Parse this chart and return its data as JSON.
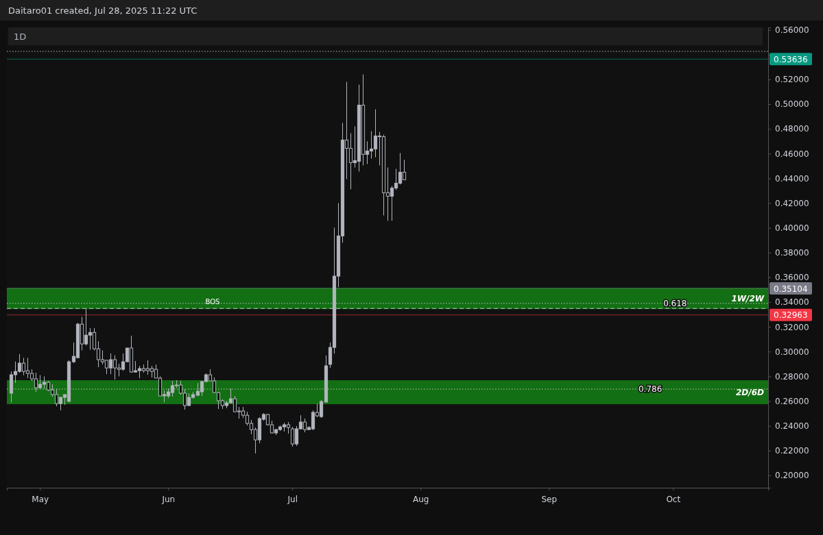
{
  "chart_data": {
    "type": "candlestick",
    "title": "1D",
    "annotations": [
      "Daitaro01 created, Jul 28, 2025 11:22 UTC",
      {
        "text": "0.618",
        "x": "2025-09-28",
        "y": 0.339
      },
      {
        "text": "0.786",
        "x": "2025-09-22",
        "y": 0.2697
      }
    ],
    "color": "#b2b5be",
    "x": [
      "2025-04-24",
      "2025-04-25",
      "2025-04-26",
      "2025-04-27",
      "2025-04-28",
      "2025-04-29",
      "2025-04-30",
      "2025-05-01",
      "2025-05-02",
      "2025-05-03",
      "2025-05-04",
      "2025-05-05",
      "2025-05-06",
      "2025-05-07",
      "2025-05-08",
      "2025-05-09",
      "2025-05-10",
      "2025-05-11",
      "2025-05-12",
      "2025-05-13",
      "2025-05-14",
      "2025-05-15",
      "2025-05-16",
      "2025-05-17",
      "2025-05-18",
      "2025-05-19",
      "2025-05-20",
      "2025-05-21",
      "2025-05-22",
      "2025-05-23",
      "2025-05-24",
      "2025-05-25",
      "2025-05-26",
      "2025-05-27",
      "2025-05-28",
      "2025-05-29",
      "2025-05-30",
      "2025-05-31",
      "2025-06-01",
      "2025-06-02",
      "2025-06-03",
      "2025-06-04",
      "2025-06-05",
      "2025-06-06",
      "2025-06-07",
      "2025-06-08",
      "2025-06-09",
      "2025-06-10",
      "2025-06-11",
      "2025-06-12",
      "2025-06-13",
      "2025-06-14",
      "2025-06-15",
      "2025-06-16",
      "2025-06-17",
      "2025-06-18",
      "2025-06-19",
      "2025-06-20",
      "2025-06-21",
      "2025-06-22",
      "2025-06-23",
      "2025-06-24",
      "2025-06-25",
      "2025-06-26",
      "2025-06-27",
      "2025-06-28",
      "2025-06-29",
      "2025-06-30",
      "2025-07-01",
      "2025-07-02",
      "2025-07-03",
      "2025-07-04",
      "2025-07-05",
      "2025-07-06",
      "2025-07-07",
      "2025-07-08",
      "2025-07-09",
      "2025-07-10",
      "2025-07-11",
      "2025-07-12",
      "2025-07-13",
      "2025-07-14",
      "2025-07-15",
      "2025-07-16",
      "2025-07-17",
      "2025-07-18",
      "2025-07-19",
      "2025-07-20",
      "2025-07-21",
      "2025-07-22",
      "2025-07-23",
      "2025-07-24",
      "2025-07-25",
      "2025-07-26",
      "2025-07-27",
      "2025-07-28"
    ],
    "ohlc": [
      [
        0.2664,
        0.284,
        0.259,
        0.2813
      ],
      [
        0.2813,
        0.292,
        0.2747,
        0.284
      ],
      [
        0.284,
        0.298,
        0.283,
        0.2907
      ],
      [
        0.2907,
        0.295,
        0.281,
        0.284
      ],
      [
        0.2846,
        0.295,
        0.2786,
        0.2824
      ],
      [
        0.2824,
        0.2857,
        0.2763,
        0.278
      ],
      [
        0.278,
        0.283,
        0.2675,
        0.2708
      ],
      [
        0.2708,
        0.281,
        0.27,
        0.2736
      ],
      [
        0.2736,
        0.28,
        0.27,
        0.2752
      ],
      [
        0.2752,
        0.2763,
        0.268,
        0.269
      ],
      [
        0.269,
        0.2736,
        0.2636,
        0.2653
      ],
      [
        0.2653,
        0.27,
        0.2558,
        0.258
      ],
      [
        0.258,
        0.2636,
        0.2525,
        0.263
      ],
      [
        0.263,
        0.2653,
        0.257,
        0.2653
      ],
      [
        0.2598,
        0.293,
        0.259,
        0.2918
      ],
      [
        0.2918,
        0.3073,
        0.2908,
        0.2962
      ],
      [
        0.2951,
        0.3233,
        0.2946,
        0.3222
      ],
      [
        0.3222,
        0.328,
        0.301,
        0.3062
      ],
      [
        0.3062,
        0.335,
        0.305,
        0.3133
      ],
      [
        0.3133,
        0.319,
        0.3015,
        0.3155
      ],
      [
        0.3155,
        0.319,
        0.301,
        0.3023
      ],
      [
        0.3023,
        0.3084,
        0.2874,
        0.2935
      ],
      [
        0.2935,
        0.301,
        0.2896,
        0.2918
      ],
      [
        0.293,
        0.293,
        0.2818,
        0.2868
      ],
      [
        0.2868,
        0.2985,
        0.2818,
        0.2935
      ],
      [
        0.2935,
        0.297,
        0.2775,
        0.2868
      ],
      [
        0.2868,
        0.2902,
        0.28,
        0.2857
      ],
      [
        0.2857,
        0.2985,
        0.2846,
        0.2918
      ],
      [
        0.2918,
        0.303,
        0.2918,
        0.3029
      ],
      [
        0.3029,
        0.3128,
        0.283,
        0.2835
      ],
      [
        0.2835,
        0.2924,
        0.283,
        0.2846
      ],
      [
        0.2846,
        0.2885,
        0.2786,
        0.2863
      ],
      [
        0.2863,
        0.2896,
        0.283,
        0.2846
      ],
      [
        0.2863,
        0.2929,
        0.2813,
        0.2846
      ],
      [
        0.2863,
        0.2885,
        0.2791,
        0.284
      ],
      [
        0.2857,
        0.2896,
        0.2786,
        0.2786
      ],
      [
        0.2786,
        0.28,
        0.2642,
        0.2642
      ],
      [
        0.2642,
        0.2686,
        0.259,
        0.2653
      ],
      [
        0.2642,
        0.27,
        0.2625,
        0.2675
      ],
      [
        0.2669,
        0.2763,
        0.2636,
        0.2725
      ],
      [
        0.2725,
        0.2769,
        0.2708,
        0.273
      ],
      [
        0.273,
        0.2763,
        0.2653,
        0.2664
      ],
      [
        0.2664,
        0.2697,
        0.2531,
        0.2564
      ],
      [
        0.2564,
        0.2664,
        0.2564,
        0.263
      ],
      [
        0.263,
        0.2675,
        0.262,
        0.2653
      ],
      [
        0.2647,
        0.2747,
        0.2642,
        0.268
      ],
      [
        0.2675,
        0.2763,
        0.2642,
        0.2758
      ],
      [
        0.2758,
        0.2824,
        0.2752,
        0.2813
      ],
      [
        0.2813,
        0.2857,
        0.2758,
        0.2763
      ],
      [
        0.2763,
        0.2791,
        0.2664,
        0.2669
      ],
      [
        0.2669,
        0.2675,
        0.2536,
        0.2603
      ],
      [
        0.2603,
        0.2614,
        0.2536,
        0.2564
      ],
      [
        0.2564,
        0.2603,
        0.2542,
        0.2586
      ],
      [
        0.2586,
        0.2702,
        0.2586,
        0.2619
      ],
      [
        0.2619,
        0.2642,
        0.2514,
        0.2514
      ],
      [
        0.252,
        0.2553,
        0.2459,
        0.2514
      ],
      [
        0.252,
        0.2553,
        0.2464,
        0.2486
      ],
      [
        0.2486,
        0.2514,
        0.2403,
        0.242
      ],
      [
        0.242,
        0.2448,
        0.2332,
        0.237
      ],
      [
        0.237,
        0.2387,
        0.2177,
        0.2287
      ],
      [
        0.2287,
        0.247,
        0.226,
        0.2459
      ],
      [
        0.2453,
        0.2503,
        0.2442,
        0.2492
      ],
      [
        0.2492,
        0.2497,
        0.2403,
        0.2409
      ],
      [
        0.2409,
        0.2442,
        0.2337,
        0.2343
      ],
      [
        0.2343,
        0.2376,
        0.2326,
        0.237
      ],
      [
        0.237,
        0.2403,
        0.2359,
        0.2392
      ],
      [
        0.2392,
        0.2425,
        0.2354,
        0.2409
      ],
      [
        0.2409,
        0.2431,
        0.2337,
        0.2387
      ],
      [
        0.2376,
        0.2392,
        0.2232,
        0.2254
      ],
      [
        0.2254,
        0.2398,
        0.2238,
        0.2376
      ],
      [
        0.2376,
        0.2486,
        0.237,
        0.2431
      ],
      [
        0.2431,
        0.2459,
        0.2348,
        0.237
      ],
      [
        0.237,
        0.2398,
        0.2365,
        0.2387
      ],
      [
        0.2376,
        0.2525,
        0.2365,
        0.2509
      ],
      [
        0.2509,
        0.258,
        0.247,
        0.2481
      ],
      [
        0.2475,
        0.2608,
        0.2464,
        0.2597
      ],
      [
        0.2592,
        0.2968,
        0.2592,
        0.2885
      ],
      [
        0.2897,
        0.3073,
        0.2868,
        0.3034
      ],
      [
        0.3034,
        0.4002,
        0.2984,
        0.361
      ],
      [
        0.361,
        0.4201,
        0.3521,
        0.3935
      ],
      [
        0.3935,
        0.4848,
        0.388,
        0.471
      ],
      [
        0.471,
        0.518,
        0.4394,
        0.4643
      ],
      [
        0.4643,
        0.4765,
        0.4312,
        0.4527
      ],
      [
        0.4527,
        0.482,
        0.4488,
        0.4544
      ],
      [
        0.4538,
        0.5158,
        0.4455,
        0.4992
      ],
      [
        0.4992,
        0.524,
        0.4505,
        0.4594
      ],
      [
        0.4594,
        0.4699,
        0.4516,
        0.4621
      ],
      [
        0.4621,
        0.4782,
        0.456,
        0.4638
      ],
      [
        0.4638,
        0.4958,
        0.4571,
        0.4743
      ],
      [
        0.4743,
        0.4776,
        0.4505,
        0.4737
      ],
      [
        0.4737,
        0.4754,
        0.4101,
        0.4284
      ],
      [
        0.4284,
        0.4488,
        0.4057,
        0.4256
      ],
      [
        0.4256,
        0.4339,
        0.4057,
        0.4322
      ],
      [
        0.4322,
        0.4477,
        0.4306,
        0.4361
      ],
      [
        0.4361,
        0.4604,
        0.435,
        0.445
      ],
      [
        0.445,
        0.4549,
        0.4389,
        0.4389
      ]
    ],
    "xlim": [
      "2025-04-23",
      "2025-10-24"
    ],
    "xticks": [
      {
        "value": "2025-05-01",
        "label": "May"
      },
      {
        "value": "2025-06-01",
        "label": "Jun"
      },
      {
        "value": "2025-07-01",
        "label": "Jul"
      },
      {
        "value": "2025-08-01",
        "label": "Aug"
      },
      {
        "value": "2025-09-01",
        "label": "Sep"
      },
      {
        "value": "2025-10-01",
        "label": "Oct"
      }
    ],
    "ylim": [
      0.19,
      0.562
    ],
    "yticks": [
      {
        "value": 0.2,
        "label": "0.20000"
      },
      {
        "value": 0.22,
        "label": "0.22000"
      },
      {
        "value": 0.24,
        "label": "0.24000"
      },
      {
        "value": 0.26,
        "label": "0.26000"
      },
      {
        "value": 0.28,
        "label": "0.28000"
      },
      {
        "value": 0.3,
        "label": "0.30000"
      },
      {
        "value": 0.32,
        "label": "0.32000"
      },
      {
        "value": 0.34,
        "label": "0.34000"
      },
      {
        "value": 0.36,
        "label": "0.36000"
      },
      {
        "value": 0.38,
        "label": "0.38000"
      },
      {
        "value": 0.4,
        "label": "0.40000"
      },
      {
        "value": 0.42,
        "label": "0.42000"
      },
      {
        "value": 0.44,
        "label": "0.44000"
      },
      {
        "value": 0.46,
        "label": "0.46000"
      },
      {
        "value": 0.48,
        "label": "0.48000"
      },
      {
        "value": 0.5,
        "label": "0.50000"
      },
      {
        "value": 0.52,
        "label": "0.52000"
      },
      {
        "value": 0.54,
        "label": null
      },
      {
        "value": 0.56,
        "label": "0.56000"
      }
    ],
    "bands": [
      {
        "axis": "y",
        "from": 0.3344,
        "to": 0.3515,
        "label": "1W/2W",
        "color": "#148f14"
      },
      {
        "axis": "y",
        "from": 0.2575,
        "to": 0.2769,
        "label": "2D/6D",
        "color": "#148f14"
      }
    ],
    "ref_lines": [
      {
        "axis": "y",
        "value": 0.5426,
        "line_style": "dotted",
        "color": "#d1d4dc"
      },
      {
        "axis": "y",
        "value": 0.3349,
        "label": "BOS",
        "line_style": "dashed",
        "color": "#d1d4dc"
      },
      {
        "axis": "y",
        "value": 0.339,
        "line_style": "dotted",
        "color": "#d1d4dc"
      },
      {
        "axis": "y",
        "value": 0.2697,
        "line_style": "dotted",
        "color": "#d1d4dc"
      },
      {
        "axis": "y",
        "value": 0.53636,
        "label": "0.53636",
        "color": "#089981"
      },
      {
        "axis": "y",
        "value": 0.35104,
        "label": "0.35104",
        "color": "#787b86"
      },
      {
        "axis": "y",
        "value": 0.32963,
        "label": "0.32963",
        "color": "#f23645"
      }
    ]
  }
}
